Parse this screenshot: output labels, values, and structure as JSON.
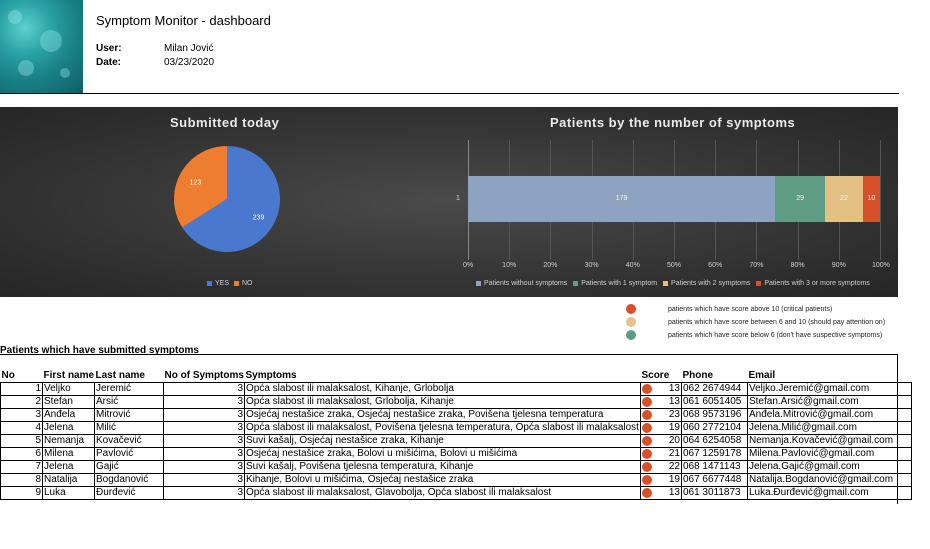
{
  "header": {
    "title": "Symptom Monitor - dashboard",
    "user_label": "User:",
    "user_value": "Milan Jović",
    "date_label": "Date:",
    "date_value": "03/23/2020"
  },
  "pie": {
    "title": "Submitted today",
    "legend": [
      "YES",
      "NO"
    ]
  },
  "bar": {
    "title": "Patients by the number of symptoms",
    "category": "1",
    "ticks": [
      "0%",
      "10%",
      "20%",
      "30%",
      "40%",
      "50%",
      "60%",
      "70%",
      "80%",
      "90%",
      "100%"
    ],
    "legend": [
      "Patients without symptoms",
      "Patients with 1 symptom",
      "Patients with 2 symptoms",
      "Patients with 3 or more symptoms"
    ]
  },
  "chart_data": [
    {
      "type": "pie",
      "title": "Submitted today",
      "categories": [
        "YES",
        "NO"
      ],
      "values": [
        239,
        123
      ],
      "colors": [
        "#4a78cf",
        "#ee7d32"
      ],
      "legend": "bottom"
    },
    {
      "type": "bar",
      "orientation": "horizontal",
      "stacked": "percent",
      "title": "Patients by the number of symptoms",
      "categories": [
        "1"
      ],
      "series": [
        {
          "name": "Patients without symptoms",
          "values": [
            179
          ],
          "color": "#8ea3c1"
        },
        {
          "name": "Patients with 1 symptom",
          "values": [
            29
          ],
          "color": "#5f9c86"
        },
        {
          "name": "Patients with 2 symptoms",
          "values": [
            22
          ],
          "color": "#e3c184"
        },
        {
          "name": "Patients with 3 or more symptoms",
          "values": [
            10
          ],
          "color": "#d8502a"
        }
      ],
      "xlim": [
        0,
        100
      ],
      "legend": "bottom"
    }
  ],
  "score_legend": [
    {
      "text": "patients which have score above 10 (critical patients)",
      "color": "#d8502a"
    },
    {
      "text": "patients which have score between 6 and 10 (should pay attention on)",
      "color": "#e9c28a"
    },
    {
      "text": "patients which have score below 6 (don't have suspective symptoms)",
      "color": "#5f9c86"
    }
  ],
  "table": {
    "section_title": "Patients which have submitted symptoms",
    "headers": [
      "No",
      "First name",
      "Last name",
      "No of Symptoms",
      "Symptoms",
      "Score",
      "Phone",
      "Email"
    ],
    "rows": [
      [
        "1",
        "Veljko",
        "Jeremić",
        "3",
        "Opća slabost ili malaksalost, Kihanje, Grlobolja",
        "13",
        "062 2674944",
        "Veljko.Jeremić@gmail.com"
      ],
      [
        "2",
        "Stefan",
        "Arsić",
        "3",
        "Opća slabost ili malaksalost, Grlobolja, Kihanje",
        "13",
        "061 6051405",
        "Stefan.Arsić@gmail.com"
      ],
      [
        "3",
        "Anđela",
        "Mitrović",
        "3",
        "Osjećaj nestašice zraka, Osjećaj nestašice zraka, Povišena tjelesna temperatura",
        "23",
        "068 9573196",
        "Anđela.Mitrović@gmail.com"
      ],
      [
        "4",
        "Jelena",
        "Milić",
        "3",
        "Opća slabost ili malaksalost, Povišena tjelesna temperatura, Opća slabost ili malaksalost",
        "19",
        "060 2772104",
        "Jelena.Milić@gmail.com"
      ],
      [
        "5",
        "Nemanja",
        "Kovačević",
        "3",
        "Suvi kašalj, Osjećaj nestašice zraka, Kihanje",
        "20",
        "064 6254058",
        "Nemanja.Kovačević@gmail.com"
      ],
      [
        "6",
        "Milena",
        "Pavlović",
        "3",
        "Osjećaj nestašice zraka, Bolovi u mišićima, Bolovi u mišićima",
        "21",
        "067 1259178",
        "Milena.Pavlović@gmail.com"
      ],
      [
        "7",
        "Jelena",
        "Gajić",
        "3",
        "Suvi kašalj, Povišena tjelesna temperatura, Kihanje",
        "22",
        "068 1471143",
        "Jelena.Gajić@gmail.com"
      ],
      [
        "8",
        "Natalija",
        "Bogdanović",
        "3",
        "Kihanje, Bolovi u mišićima, Osjećaj nestašice zraka",
        "19",
        "067 6677448",
        "Natalija.Bogdanović@gmail.com"
      ],
      [
        "9",
        "Luka",
        "Đurđević",
        "3",
        "Opća slabost ili malaksalost, Glavobolja, Opća slabost ili malaksalost",
        "13",
        "061 3011873",
        "Luka.Đurđević@gmail.com"
      ]
    ]
  }
}
